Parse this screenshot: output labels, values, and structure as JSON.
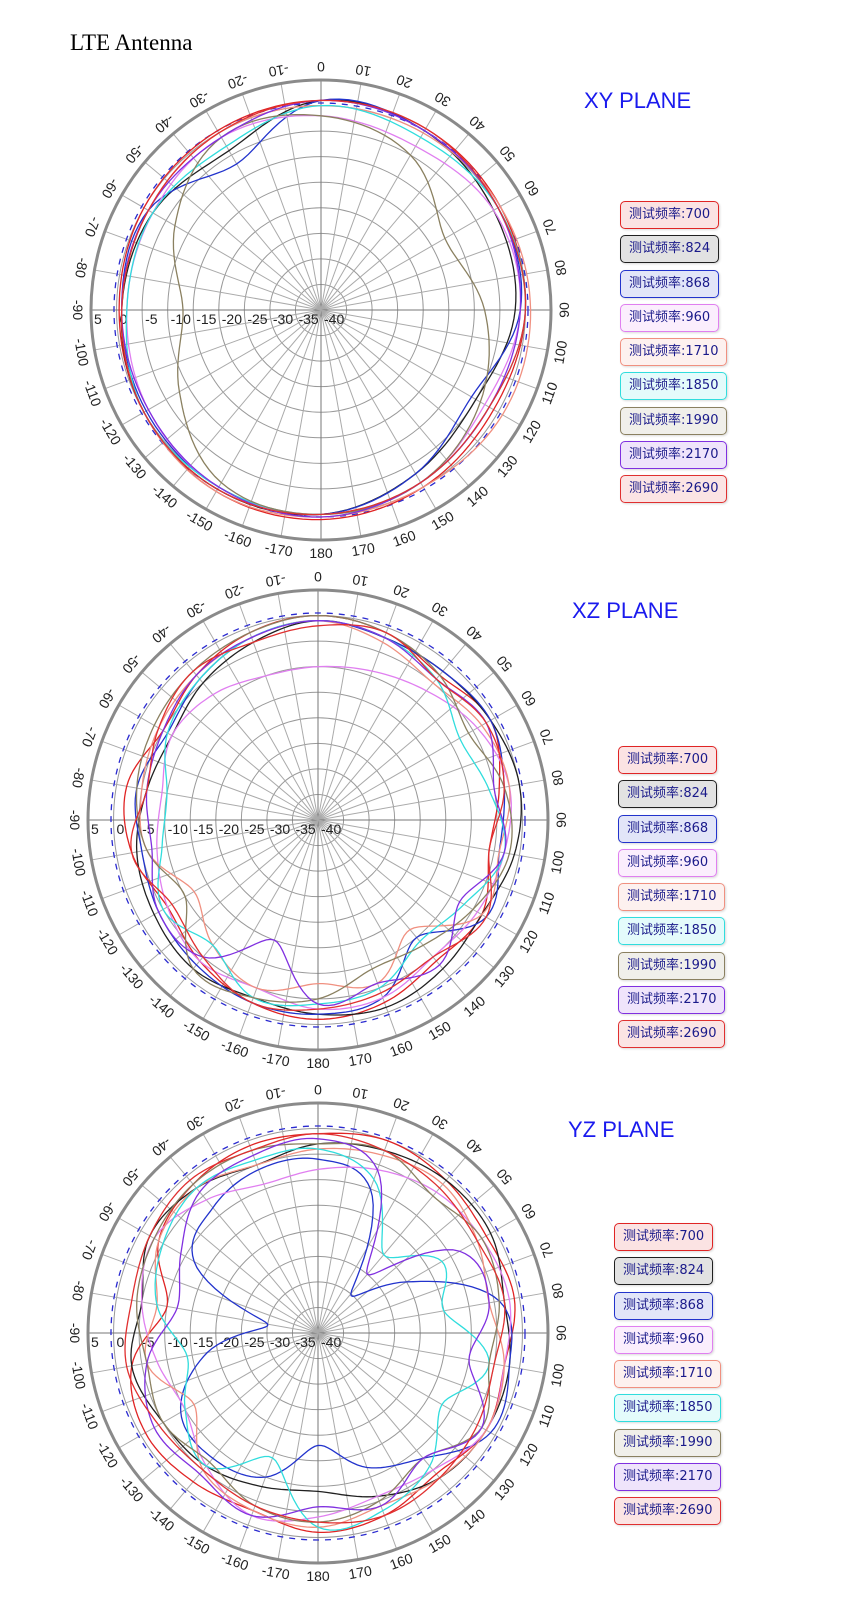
{
  "page_title": "LTE Antenna",
  "chart_data": [
    {
      "type": "polar-line",
      "title": "XY PLANE",
      "angle_ticks": [
        "0",
        "10",
        "20",
        "30",
        "40",
        "50",
        "60",
        "70",
        "80",
        "90",
        "100",
        "110",
        "120",
        "130",
        "140",
        "150",
        "160",
        "170",
        "180",
        "-170",
        "-160",
        "-150",
        "-140",
        "-130",
        "-120",
        "-110",
        "-100",
        "-90",
        "-80",
        "-70",
        "-60",
        "-50",
        "-40",
        "-30",
        "-20",
        "-10"
      ],
      "radial_ticks": [
        "5",
        "0",
        "-5",
        "-10",
        "-15",
        "-20",
        "-25",
        "-30",
        "-35",
        "-40"
      ],
      "rlim": [
        -40,
        5
      ],
      "reference_ring_db": 0.5,
      "angle_step_deg": 30,
      "series": [
        {
          "name": "700",
          "label": "测试频率:700",
          "color": "#e02424",
          "values": [
            1,
            1,
            0.5,
            0,
            -1,
            0,
            1,
            1,
            0,
            -0.5,
            0,
            0.5
          ]
        },
        {
          "name": "824",
          "label": "测试频率:824",
          "color": "#202020",
          "values": [
            1,
            0.5,
            -1,
            -2,
            -5,
            -3,
            0,
            0.5,
            0,
            -1,
            -2,
            -4
          ]
        },
        {
          "name": "868",
          "label": "测试频率:868",
          "color": "#2233cc",
          "values": [
            1,
            0.5,
            0,
            -1,
            -6,
            -3,
            0,
            0,
            -0.5,
            -1,
            -1,
            -7
          ]
        },
        {
          "name": "960",
          "label": "测试频率:960",
          "color": "#e07ff0",
          "values": [
            -2,
            -3,
            -1,
            -1,
            -3,
            -1,
            0,
            0,
            -1,
            -2,
            -2,
            -1
          ]
        },
        {
          "name": "1710",
          "label": "测试频率:1710",
          "color": "#f09080",
          "values": [
            0,
            0,
            0.5,
            1,
            1,
            0,
            0.5,
            1,
            0,
            -1,
            -1,
            0
          ]
        },
        {
          "name": "1850",
          "label": "测试频率:1850",
          "color": "#30dddd",
          "values": [
            0,
            -1,
            0,
            0,
            -2,
            -1,
            0,
            0,
            0,
            -2,
            -2,
            -3
          ]
        },
        {
          "name": "1990",
          "label": "测试频率:1990",
          "color": "#8a8060",
          "values": [
            -2,
            -5,
            -12,
            -8,
            -4,
            -1,
            0,
            -1,
            -8,
            -13,
            -7,
            -1
          ]
        },
        {
          "name": "2170",
          "label": "测试频率:2170",
          "color": "#8030e0",
          "values": [
            1,
            0.5,
            0,
            -1,
            -2,
            -1,
            0.5,
            0,
            -1,
            -1,
            -1,
            -1
          ]
        },
        {
          "name": "2690",
          "label": "测试频率:2690",
          "color": "#e03030",
          "values": [
            1,
            1,
            0,
            0,
            -2,
            -1,
            0,
            0.5,
            0,
            -1,
            -1,
            0
          ]
        }
      ]
    },
    {
      "type": "polar-line",
      "title": "XZ PLANE",
      "angle_ticks": [
        "0",
        "10",
        "20",
        "30",
        "40",
        "50",
        "60",
        "70",
        "80",
        "90",
        "100",
        "110",
        "120",
        "130",
        "140",
        "150",
        "160",
        "170",
        "180",
        "-170",
        "-160",
        "-150",
        "-140",
        "-130",
        "-120",
        "-110",
        "-100",
        "-90",
        "-80",
        "-70",
        "-60",
        "-50",
        "-40",
        "-30",
        "-20",
        "-10"
      ],
      "radial_ticks": [
        "5",
        "0",
        "-5",
        "-10",
        "-15",
        "-20",
        "-25",
        "-30",
        "-35",
        "-40"
      ],
      "rlim": [
        -40,
        5
      ],
      "reference_ring_db": 0.5,
      "angle_step_deg": 20,
      "series": [
        {
          "name": "700",
          "label": "测试频率:700",
          "color": "#e02424",
          "values": [
            0,
            -1,
            -3,
            -1,
            -4,
            -6,
            -3,
            -4,
            -2,
            -1,
            -2,
            -4,
            -6,
            -3,
            -2,
            -5,
            -3,
            -1
          ]
        },
        {
          "name": "824",
          "label": "测试频率:824",
          "color": "#202020",
          "values": [
            -1,
            -2,
            -2,
            -1,
            0,
            -1,
            -3,
            -2,
            -1,
            -2,
            -3,
            -2,
            -3,
            -4,
            -6,
            -7,
            -5,
            -3
          ]
        },
        {
          "name": "868",
          "label": "测试频率:868",
          "color": "#2233cc",
          "values": [
            -1,
            -2,
            -2,
            -1,
            -3,
            -4,
            -2,
            -10,
            -3,
            -2,
            -2,
            -3,
            -4,
            -5,
            -4,
            -6,
            -4,
            -2
          ]
        },
        {
          "name": "960",
          "label": "测试频率:960",
          "color": "#e07ff0",
          "values": [
            -10,
            -9,
            -7,
            -4,
            -2,
            -3,
            -4,
            -5,
            -3,
            -3,
            -5,
            -4,
            -6,
            -8,
            -9,
            -7,
            -8,
            -10
          ]
        },
        {
          "name": "1710",
          "label": "测试频率:1710",
          "color": "#f09080",
          "values": [
            -1,
            -3,
            -5,
            -3,
            -2,
            -4,
            -3,
            -12,
            -6,
            -8,
            -5,
            -8,
            -12,
            -6,
            -5,
            -4,
            -3,
            -2
          ]
        },
        {
          "name": "1850",
          "label": "测试频率:1850",
          "color": "#30dddd",
          "values": [
            -1,
            -2,
            -4,
            -8,
            -6,
            -3,
            -7,
            -9,
            -5,
            -4,
            -3,
            -8,
            -5,
            -9,
            -10,
            -6,
            -4,
            -2
          ]
        },
        {
          "name": "1990",
          "label": "测试频率:1990",
          "color": "#8a8060",
          "values": [
            0,
            -1,
            -3,
            -6,
            -3,
            -2,
            -5,
            -8,
            -9,
            -5,
            -3,
            -2,
            -10,
            -6,
            -4,
            -3,
            -2,
            -1
          ]
        },
        {
          "name": "2170",
          "label": "测试频率:2170",
          "color": "#8030e0",
          "values": [
            -1,
            -2,
            -4,
            -2,
            -5,
            -3,
            -8,
            -3,
            -6,
            -4,
            -15,
            -5,
            -4,
            -7,
            -6,
            -5,
            -3,
            -2
          ]
        },
        {
          "name": "2690",
          "label": "测试频率:2690",
          "color": "#e03030",
          "values": [
            -2,
            -1,
            -4,
            -2,
            -3,
            -6,
            -2,
            -5,
            -4,
            -3,
            -2,
            -5,
            -7,
            -3,
            -6,
            -4,
            -2,
            -3
          ]
        }
      ]
    },
    {
      "type": "polar-line",
      "title": "YZ PLANE",
      "angle_ticks": [
        "0",
        "10",
        "20",
        "30",
        "40",
        "50",
        "60",
        "70",
        "80",
        "90",
        "100",
        "110",
        "120",
        "130",
        "140",
        "150",
        "160",
        "170",
        "180",
        "-170",
        "-160",
        "-150",
        "-140",
        "-130",
        "-120",
        "-110",
        "-100",
        "-90",
        "-80",
        "-70",
        "-60",
        "-50",
        "-40",
        "-30",
        "-20",
        "-10"
      ],
      "radial_ticks": [
        "5",
        "0",
        "-5",
        "-10",
        "-15",
        "-20",
        "-25",
        "-30",
        "-35",
        "-40"
      ],
      "rlim": [
        -40,
        5
      ],
      "reference_ring_db": 0.5,
      "angle_step_deg": 20,
      "series": [
        {
          "name": "700",
          "label": "测试频率:700",
          "color": "#e02424",
          "values": [
            -1,
            0,
            -1,
            -2,
            -1,
            -3,
            -2,
            -4,
            -2,
            -1,
            -3,
            -2,
            -1,
            -3,
            -10,
            -4,
            -2,
            -1
          ]
        },
        {
          "name": "824",
          "label": "测试频率:824",
          "color": "#202020",
          "values": [
            -3,
            -2,
            -1,
            -1,
            -3,
            -2,
            -2,
            -3,
            -6,
            -9,
            -8,
            -6,
            -5,
            -3,
            -5,
            -2,
            -3,
            -5
          ]
        },
        {
          "name": "868",
          "label": "测试频率:868",
          "color": "#2233cc",
          "values": [
            -6,
            -10,
            -30,
            -20,
            -4,
            -2,
            -1,
            -8,
            -12,
            -18,
            -10,
            -8,
            -9,
            -18,
            -30,
            -12,
            -8,
            -6
          ]
        },
        {
          "name": "960",
          "label": "测试频率:960",
          "color": "#e07ff0",
          "values": [
            -8,
            -6,
            -4,
            -3,
            -2,
            -3,
            -2,
            -5,
            -6,
            -4,
            -2,
            -6,
            -10,
            -8,
            -5,
            -3,
            -6,
            -9
          ]
        },
        {
          "name": "1710",
          "label": "测试频率:1710",
          "color": "#f09080",
          "values": [
            -4,
            -3,
            -2,
            -4,
            -6,
            -3,
            -2,
            -3,
            -4,
            -2,
            -3,
            -5,
            -12,
            -6,
            -8,
            -4,
            -3,
            -5
          ]
        },
        {
          "name": "1850",
          "label": "测试频率:1850",
          "color": "#30dddd",
          "values": [
            -4,
            -8,
            -20,
            -12,
            -15,
            -6,
            -12,
            -6,
            -3,
            -2,
            -14,
            -6,
            -10,
            -14,
            -8,
            -5,
            -3,
            -4
          ]
        },
        {
          "name": "1990",
          "label": "测试频率:1990",
          "color": "#8a8060",
          "values": [
            -3,
            -2,
            -5,
            -3,
            -4,
            -6,
            -3,
            -8,
            -5,
            -3,
            -4,
            -7,
            -5,
            -6,
            -4,
            -3,
            -2,
            -2
          ]
        },
        {
          "name": "2170",
          "label": "测试频率:2170",
          "color": "#8030e0",
          "values": [
            -2,
            -6,
            -25,
            -8,
            -6,
            -10,
            -3,
            -8,
            -4,
            -6,
            -2,
            -4,
            -3,
            -6,
            -12,
            -9,
            -4,
            -3
          ]
        },
        {
          "name": "2690",
          "label": "测试频率:2690",
          "color": "#e03030",
          "values": [
            -1,
            -2,
            -3,
            -4,
            -3,
            -5,
            -4,
            -3,
            -2,
            -3,
            -4,
            -5,
            -4,
            -2,
            -3,
            -2,
            -1,
            -2
          ]
        }
      ]
    }
  ]
}
